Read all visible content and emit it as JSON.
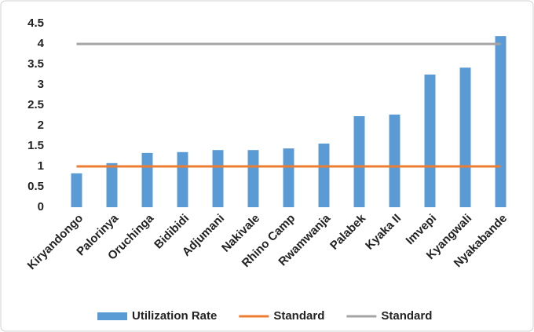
{
  "chart_data": {
    "type": "bar",
    "categories": [
      "Kiryandongo",
      "Palorinya",
      "Oruchinga",
      "Bidibidi",
      "Adjumani",
      "Nakivale",
      "Rhino Camp",
      "Rwamwanja",
      "Palabek",
      "Kyaka II",
      "Imvepi",
      "Kyangwali",
      "Nyakabande"
    ],
    "series": [
      {
        "name": "Utilization Rate",
        "type": "bar",
        "color": "#5b9bd5",
        "values": [
          0.83,
          1.08,
          1.33,
          1.35,
          1.4,
          1.4,
          1.44,
          1.56,
          2.23,
          2.27,
          3.25,
          3.42,
          4.19
        ]
      },
      {
        "name": "Standard",
        "type": "line",
        "color": "#ed7d31",
        "values": [
          1,
          1,
          1,
          1,
          1,
          1,
          1,
          1,
          1,
          1,
          1,
          1,
          1
        ]
      },
      {
        "name": "Standard",
        "type": "line",
        "color": "#a5a5a5",
        "values": [
          4,
          4,
          4,
          4,
          4,
          4,
          4,
          4,
          4,
          4,
          4,
          4,
          4
        ]
      }
    ],
    "ylim": [
      0,
      4.5
    ],
    "yticks": [
      0,
      0.5,
      1,
      1.5,
      2,
      2.5,
      3,
      3.5,
      4,
      4.5
    ],
    "grid": false,
    "legend": "bottom"
  }
}
